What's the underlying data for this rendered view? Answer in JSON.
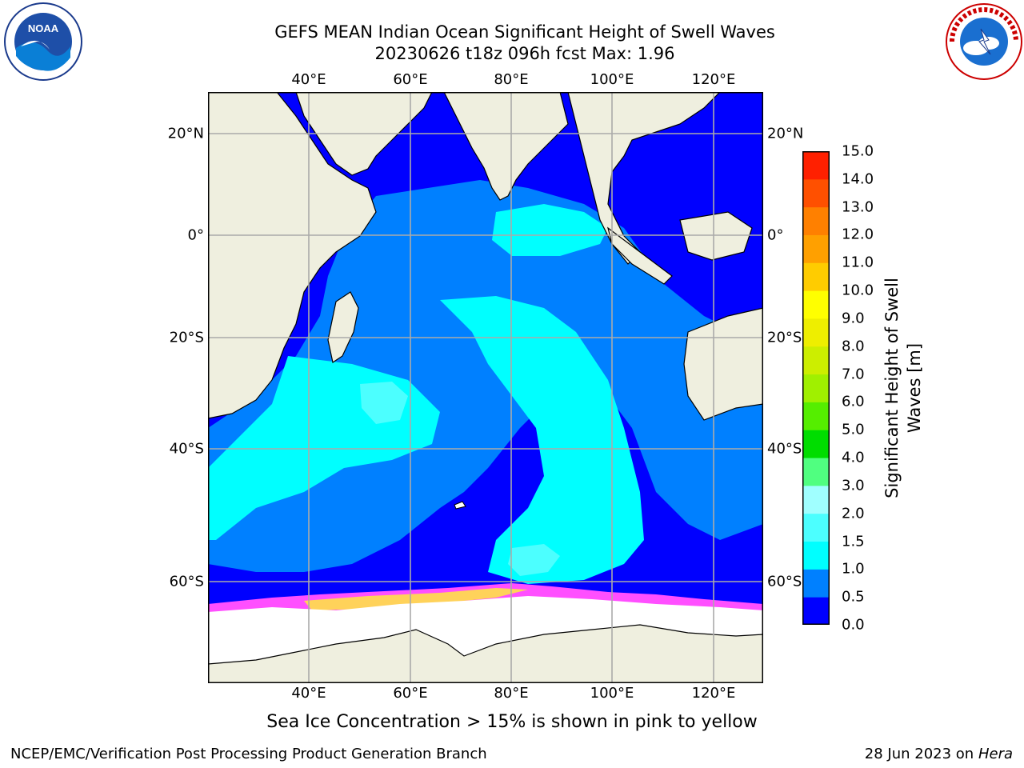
{
  "title": {
    "line1": "GEFS MEAN Indian Ocean Significant Height of Swell Waves",
    "line2": "20230626 t18z 096h fcst   Max: 1.96"
  },
  "map": {
    "lon_labels": [
      "40°E",
      "60°E",
      "80°E",
      "100°E",
      "120°E"
    ],
    "lat_labels": [
      "20°N",
      "0°",
      "20°S",
      "40°S",
      "60°S"
    ],
    "colors": {
      "land": "#efefdf",
      "ocean_low": "#0000ff",
      "ocean_mid": "#0080ff",
      "ocean_high": "#00ffff",
      "ice": "#ffffff",
      "ice_edge": "#ff4fff"
    }
  },
  "colorbar": {
    "ticks": [
      "0.0",
      "0.5",
      "1.0",
      "1.5",
      "2.0",
      "3.0",
      "4.0",
      "5.0",
      "6.0",
      "7.0",
      "8.0",
      "9.0",
      "10.0",
      "11.0",
      "12.0",
      "13.0",
      "14.0",
      "15.0"
    ],
    "colors": [
      "#0000ff",
      "#0080ff",
      "#00ffff",
      "#4cffff",
      "#a0ffff",
      "#50ff80",
      "#00dd00",
      "#55ee00",
      "#a0f000",
      "#ccee00",
      "#eeee00",
      "#ffff00",
      "#ffcc00",
      "#ffa000",
      "#ff8000",
      "#ff5000",
      "#ff2000",
      "#ff0000"
    ],
    "title_line1": "Significant Height of Swell",
    "title_line2": "Waves [m]"
  },
  "caption": "Sea Ice Concentration > 15% is shown in pink to yellow",
  "footer": {
    "left": "NCEP/EMC/Verification Post Processing Product Generation Branch",
    "date": "28 Jun 2023 on",
    "system": "Hera"
  },
  "logos": {
    "noaa": "NOAA",
    "nws": "NATIONAL WEATHER SERVICE"
  }
}
